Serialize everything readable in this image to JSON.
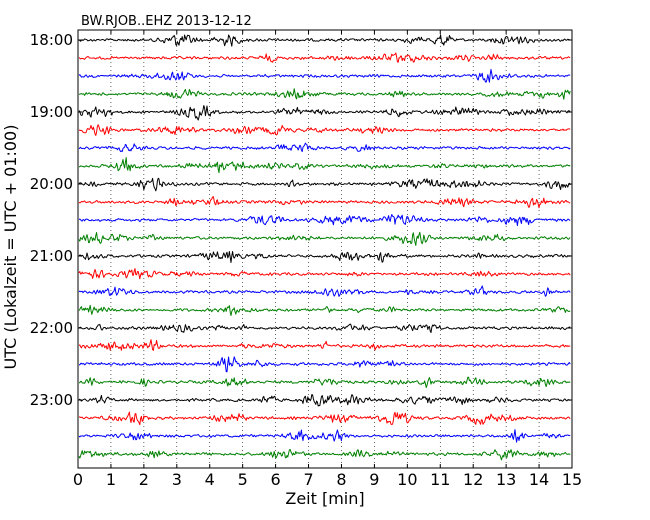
{
  "chart_data": {
    "type": "line",
    "title": "BW.RJOB..EHZ 2013-12-12",
    "xlabel": "Zeit  [min]",
    "ylabel": "UTC (Lokalzeit = UTC + 01:00)",
    "xlim": [
      0,
      15
    ],
    "x_ticks": [
      "0",
      "1",
      "2",
      "3",
      "4",
      "5",
      "6",
      "7",
      "8",
      "9",
      "10",
      "11",
      "12",
      "13",
      "14",
      "15"
    ],
    "y_tick_labels": [
      "18:00",
      "19:00",
      "20:00",
      "21:00",
      "22:00",
      "23:00"
    ],
    "y_tick_rows": [
      0,
      4,
      8,
      12,
      16,
      20
    ],
    "grid": true,
    "rows": 24,
    "row_interval_min": 15,
    "start_time": "18:00",
    "end_time": "24:00",
    "series_colors": [
      "#000000",
      "#ff0000",
      "#0000ff",
      "#008000"
    ]
  }
}
